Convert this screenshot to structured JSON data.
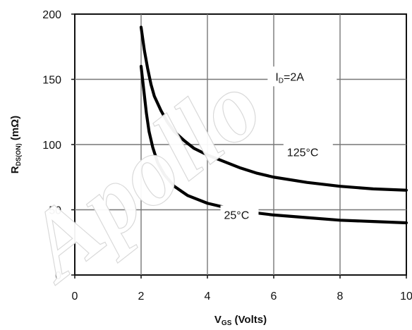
{
  "watermark": {
    "text": "Apollo"
  },
  "chart_data": {
    "type": "line",
    "title": "",
    "xlabel": {
      "main": "V",
      "sub": "GS",
      "suffix": " (Volts)"
    },
    "ylabel": {
      "main": "R",
      "sub": "DS(ON)",
      "suffix": " (mΩ)"
    },
    "xlim": [
      0,
      10
    ],
    "ylim": [
      0,
      200
    ],
    "xticks": [
      0,
      2,
      4,
      6,
      8,
      10
    ],
    "yticks": [
      0,
      50,
      100,
      150,
      200
    ],
    "x_tick_labels": [
      "0",
      "2",
      "4",
      "6",
      "8",
      "10"
    ],
    "y_tick_labels": [
      "0",
      "50",
      "100",
      "150",
      "200"
    ],
    "grid": true,
    "annotations": [
      {
        "id": "id-label",
        "main": "I",
        "sub": "D",
        "suffix": "=2A",
        "x": 6.05,
        "y": 149
      },
      {
        "id": "label-125c",
        "text": "125°C",
        "x": 6.4,
        "y": 91
      },
      {
        "id": "label-25c",
        "text": "25°C",
        "x": 4.5,
        "y": 43
      }
    ],
    "series": [
      {
        "id": "series-125c",
        "points": [
          [
            2.0,
            190
          ],
          [
            2.1,
            172
          ],
          [
            2.2,
            158
          ],
          [
            2.3,
            146
          ],
          [
            2.4,
            137
          ],
          [
            2.6,
            126
          ],
          [
            2.8,
            117
          ],
          [
            3.0,
            110
          ],
          [
            3.3,
            103
          ],
          [
            3.6,
            97
          ],
          [
            4.0,
            92
          ],
          [
            4.5,
            87
          ],
          [
            5.0,
            82
          ],
          [
            5.5,
            78
          ],
          [
            6.0,
            75
          ],
          [
            7.0,
            71
          ],
          [
            8.0,
            68
          ],
          [
            9.0,
            66
          ],
          [
            10.0,
            65
          ]
        ]
      },
      {
        "id": "series-25c",
        "points": [
          [
            2.0,
            160
          ],
          [
            2.08,
            142
          ],
          [
            2.16,
            124
          ],
          [
            2.24,
            110
          ],
          [
            2.35,
            98
          ],
          [
            2.5,
            86
          ],
          [
            2.7,
            77
          ],
          [
            3.0,
            68
          ],
          [
            3.4,
            61
          ],
          [
            4.0,
            55
          ],
          [
            4.5,
            52
          ],
          [
            5.0,
            49
          ],
          [
            6.0,
            46
          ],
          [
            7.0,
            44
          ],
          [
            8.0,
            42
          ],
          [
            9.0,
            41
          ],
          [
            10.0,
            40
          ]
        ]
      }
    ]
  }
}
